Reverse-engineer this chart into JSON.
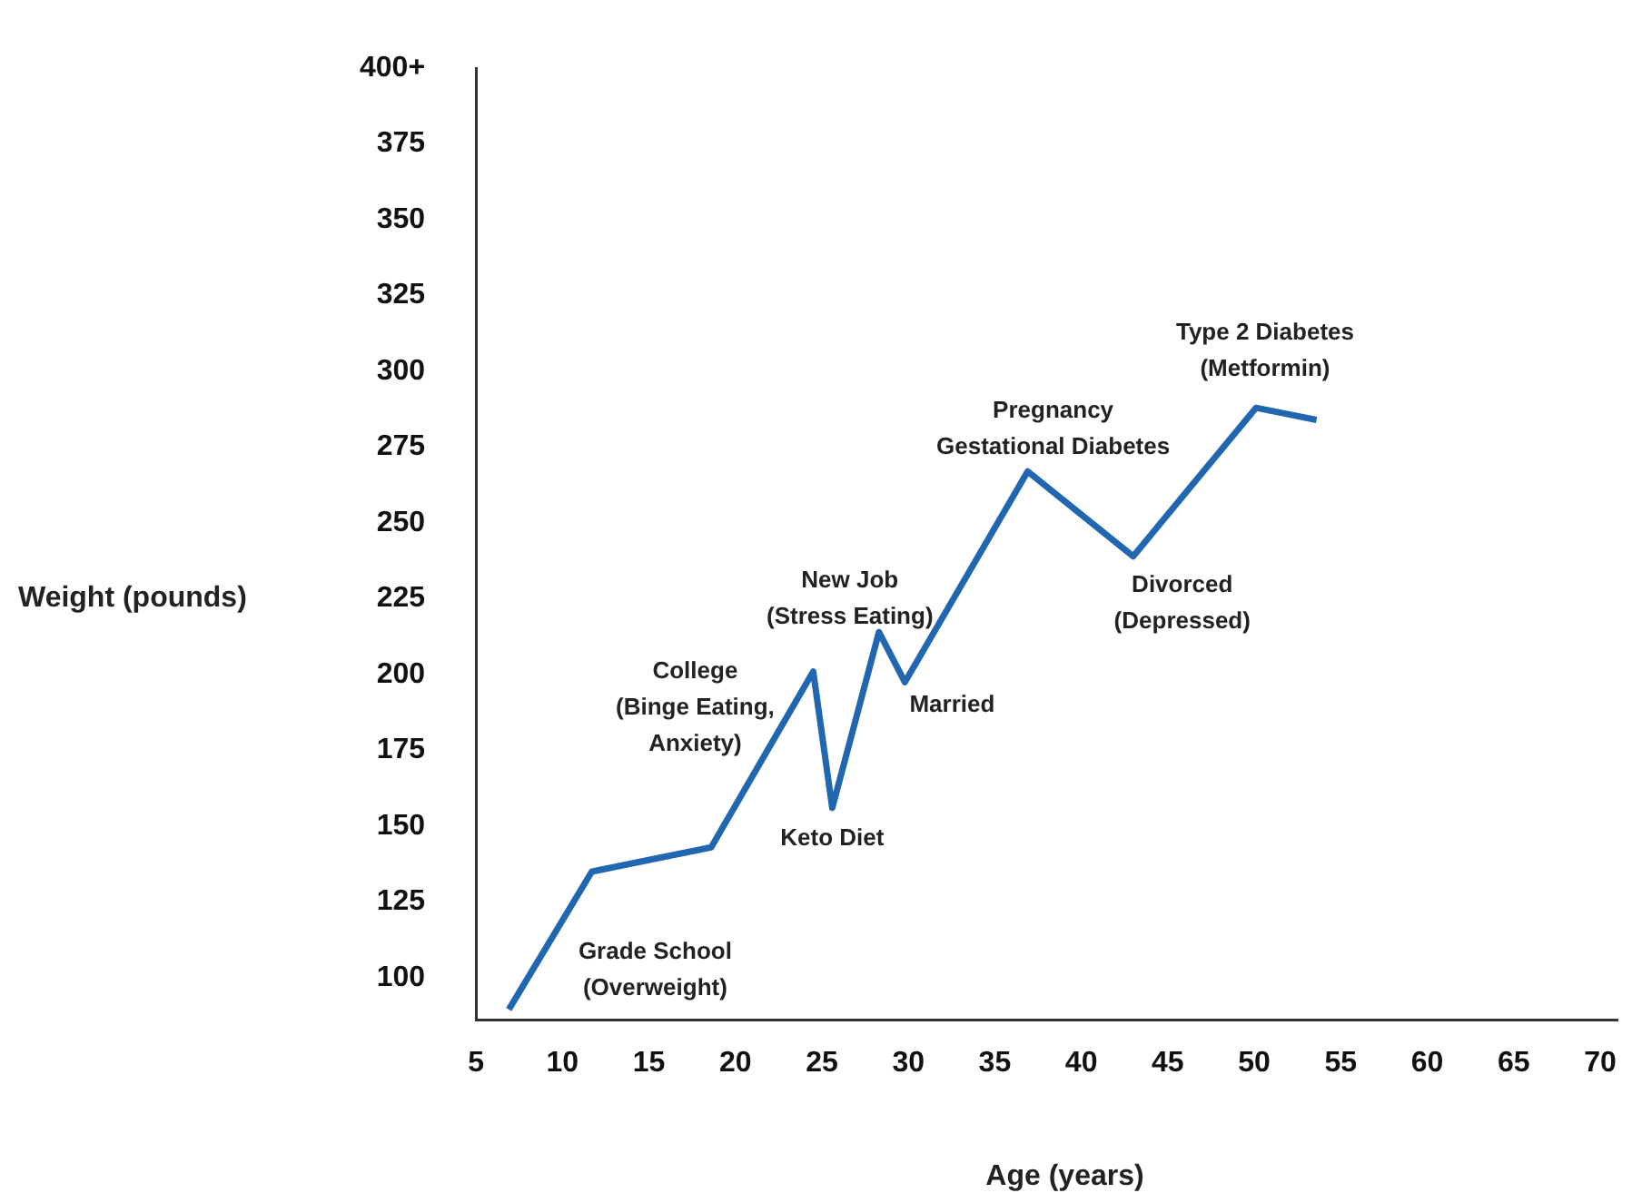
{
  "chart_data": {
    "type": "line",
    "xlabel": "Age (years)",
    "ylabel": "Weight (pounds)",
    "x": [
      6.9,
      11.7,
      18.6,
      24.5,
      25.6,
      28.3,
      29.8,
      36.9,
      43.0,
      50.1,
      53.6
    ],
    "series": [
      {
        "color": "#2166b0",
        "values": [
          89.5,
          135,
          143,
          201,
          156,
          214,
          197.5,
          267,
          239,
          288,
          284
        ]
      }
    ],
    "xlim": [
      5,
      71
    ],
    "xticks": [
      5,
      10,
      15,
      20,
      25,
      30,
      35,
      40,
      45,
      50,
      55,
      60,
      65,
      70
    ],
    "ylim": [
      86,
      400
    ],
    "yticks": [
      100,
      125,
      150,
      175,
      200,
      225,
      250,
      275,
      300,
      325,
      350,
      375,
      {
        "value": 400,
        "label": "400+"
      }
    ],
    "grid": false,
    "legend": false,
    "marker": "none",
    "line_style": "solid",
    "annotations": [
      "Grade School\n(Overweight)",
      {
        "text": "College\n(Binge Eating,\nAnxiety)",
        "x": 24.5,
        "y": 201
      },
      {
        "text": "Keto Diet",
        "x": 25.6,
        "y": 156
      },
      {
        "text": "New Job\n(Stress Eating)",
        "x": 28.3,
        "y": 214
      },
      {
        "text": "Married",
        "x": 29.8,
        "y": 197.5
      },
      {
        "text": "Pregnancy\nGestational Diabetes",
        "x": 36.9,
        "y": 267
      },
      {
        "text": "Divorced\n(Depressed)",
        "x": 43.0,
        "y": 239
      },
      {
        "text": "Type 2 Diabetes\n(Metformin)",
        "x": 50.1,
        "y": 288
      }
    ]
  }
}
